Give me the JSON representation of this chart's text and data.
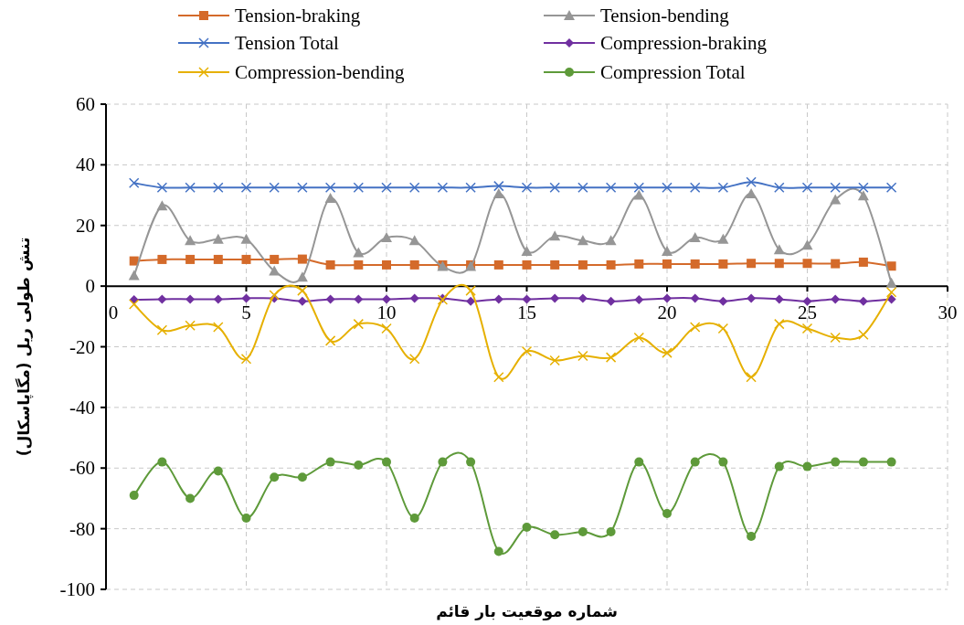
{
  "chart_data": {
    "type": "line",
    "xlabel": "شماره موقعیت بار قائم",
    "ylabel": "تنش طولی ریل (مگاپاسکال)",
    "x": [
      1,
      2,
      3,
      4,
      5,
      6,
      7,
      8,
      9,
      10,
      11,
      12,
      13,
      14,
      15,
      16,
      17,
      18,
      19,
      20,
      21,
      22,
      23,
      24,
      25,
      26,
      27,
      28
    ],
    "xlim": [
      0,
      30
    ],
    "xticks": [
      0,
      5,
      10,
      15,
      20,
      25,
      30
    ],
    "ylim": [
      -100,
      60
    ],
    "yticks": [
      -100,
      -80,
      -60,
      -40,
      -20,
      0,
      20,
      40,
      60
    ],
    "grid": true,
    "legend": "top",
    "line_style": "solid",
    "series": [
      {
        "name": "Tension-braking",
        "color": "#d46a2a",
        "marker": "square",
        "values": [
          8.3,
          8.8,
          8.8,
          8.8,
          8.8,
          8.8,
          8.9,
          7,
          7,
          7,
          7,
          7,
          7,
          7,
          7,
          7,
          7,
          7,
          7.3,
          7.3,
          7.3,
          7.3,
          7.5,
          7.5,
          7.5,
          7.4,
          7.9,
          6.6
        ]
      },
      {
        "name": "Tension-bending",
        "color": "#969696",
        "marker": "triangle",
        "values": [
          3.5,
          26.5,
          15,
          15.5,
          15.5,
          5,
          3,
          29,
          11,
          16,
          15,
          6.5,
          6.5,
          30.5,
          11.5,
          16.5,
          15,
          15,
          30,
          11.5,
          16,
          15.5,
          30.5,
          12,
          13.5,
          28.5,
          29.8,
          1
        ]
      },
      {
        "name": "Tension Total",
        "color": "#4472c4",
        "marker": "cross",
        "values": [
          34,
          32.5,
          32.5,
          32.5,
          32.5,
          32.5,
          32.5,
          32.5,
          32.5,
          32.5,
          32.5,
          32.5,
          32.5,
          33,
          32.5,
          32.5,
          32.5,
          32.5,
          32.5,
          32.5,
          32.5,
          32.5,
          34.3,
          32.5,
          32.5,
          32.5,
          32.5,
          32.5
        ]
      },
      {
        "name": "Compression-braking",
        "color": "#7030a0",
        "marker": "diamond",
        "values": [
          -4.5,
          -4.3,
          -4.3,
          -4.3,
          -4,
          -4,
          -5,
          -4.3,
          -4.3,
          -4.3,
          -4,
          -4,
          -5,
          -4.3,
          -4.3,
          -4,
          -4,
          -5,
          -4.5,
          -4,
          -4,
          -5,
          -4,
          -4.3,
          -5,
          -4.3,
          -5,
          -4.3
        ]
      },
      {
        "name": "Compression-bending",
        "color": "#e6b000",
        "marker": "cross",
        "values": [
          -6,
          -14.5,
          -13,
          -13.5,
          -24,
          -3,
          -1.5,
          -18,
          -12.5,
          -14,
          -24,
          -4.5,
          -1.5,
          -30,
          -21.5,
          -24.5,
          -23,
          -23.5,
          -17,
          -22,
          -13.5,
          -14,
          -30,
          -12.5,
          -14,
          -17,
          -16,
          -2
        ]
      },
      {
        "name": "Compression Total",
        "color": "#5e9a3a",
        "marker": "circle",
        "values": [
          -69,
          -58,
          -70,
          -61,
          -76.5,
          -63,
          -63,
          -58,
          -59,
          -58,
          -76.5,
          -58,
          -58,
          -87.5,
          -79.5,
          -82,
          -81,
          -81,
          -58,
          -75,
          -58,
          -58,
          -82.5,
          -59.5,
          -59.5,
          -58,
          -58,
          -58
        ]
      }
    ]
  }
}
